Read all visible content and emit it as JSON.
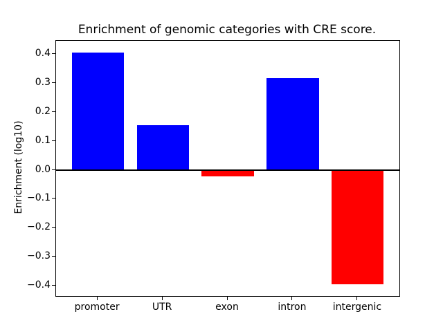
{
  "chart_data": {
    "type": "bar",
    "title": "Enrichment of genomic categories with CRE score.",
    "xlabel": "",
    "ylabel": "Enrichment (log10)",
    "categories": [
      "promoter",
      "UTR",
      "exon",
      "intron",
      "intergenic"
    ],
    "values": [
      0.406,
      0.156,
      -0.021,
      0.317,
      -0.394
    ],
    "bar_colors": [
      "#0000ff",
      "#0000ff",
      "#ff0000",
      "#0000ff",
      "#ff0000"
    ],
    "color_rule": "positive bars blue, negative bars red",
    "bar_width": 0.8,
    "yticks": [
      -0.4,
      -0.3,
      -0.2,
      -0.1,
      0.0,
      0.1,
      0.2,
      0.3,
      0.4
    ],
    "ytick_labels": [
      "−0.4",
      "−0.3",
      "−0.2",
      "−0.1",
      "0.0",
      "0.1",
      "0.2",
      "0.3",
      "0.4"
    ],
    "ylim": [
      -0.434,
      0.446
    ],
    "xlim": [
      -0.64,
      4.64
    ],
    "grid": false,
    "legend": false,
    "zero_line": true,
    "axis_color": "#000000",
    "background_color": "#ffffff"
  }
}
